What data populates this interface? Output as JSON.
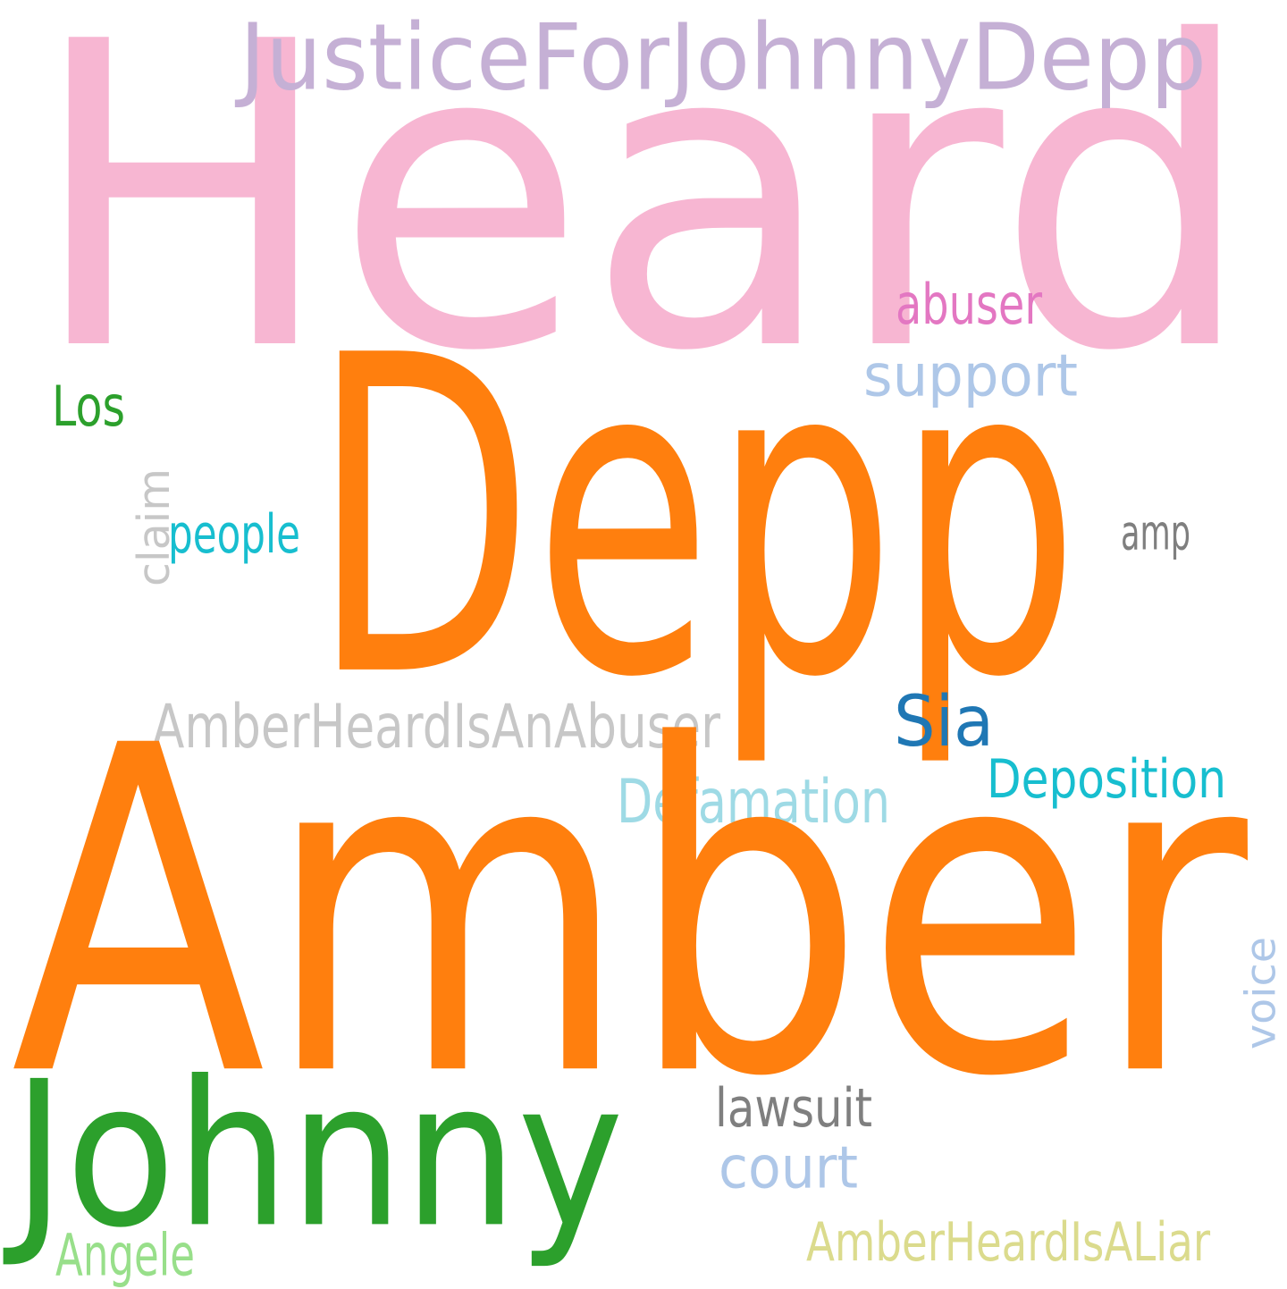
{
  "words": [
    {
      "text": "Heard",
      "color": "#f7b6d2",
      "vertical": false
    },
    {
      "text": "JusticeForJohnnyDepp",
      "color": "#c5b0d5",
      "vertical": false
    },
    {
      "text": "Depp",
      "color": "#ff7f0e",
      "vertical": false
    },
    {
      "text": "abuser",
      "color": "#e377c2",
      "vertical": false
    },
    {
      "text": "support",
      "color": "#aec7e8",
      "vertical": false
    },
    {
      "text": "Los",
      "color": "#2ca02c",
      "vertical": false
    },
    {
      "text": "claim",
      "color": "#c7c7c7",
      "vertical": true
    },
    {
      "text": "people",
      "color": "#17becf",
      "vertical": false
    },
    {
      "text": "amp",
      "color": "#7f7f7f",
      "vertical": false
    },
    {
      "text": "AmberHeardIsAnAbuser",
      "color": "#c7c7c7",
      "vertical": false
    },
    {
      "text": "Sia",
      "color": "#1f77b4",
      "vertical": false
    },
    {
      "text": "Deposition",
      "color": "#17becf",
      "vertical": false
    },
    {
      "text": "Defamation",
      "color": "#9edae5",
      "vertical": false
    },
    {
      "text": "Amber",
      "color": "#ff7f0e",
      "vertical": false
    },
    {
      "text": "voice",
      "color": "#aec7e8",
      "vertical": true
    },
    {
      "text": "Johnny",
      "color": "#2ca02c",
      "vertical": false
    },
    {
      "text": "lawsuit",
      "color": "#7f7f7f",
      "vertical": false
    },
    {
      "text": "court",
      "color": "#aec7e8",
      "vertical": false
    },
    {
      "text": "AmberHeardIsALiar",
      "color": "#dbdb8d",
      "vertical": false
    },
    {
      "text": "Angele",
      "color": "#98df8a",
      "vertical": false
    }
  ]
}
